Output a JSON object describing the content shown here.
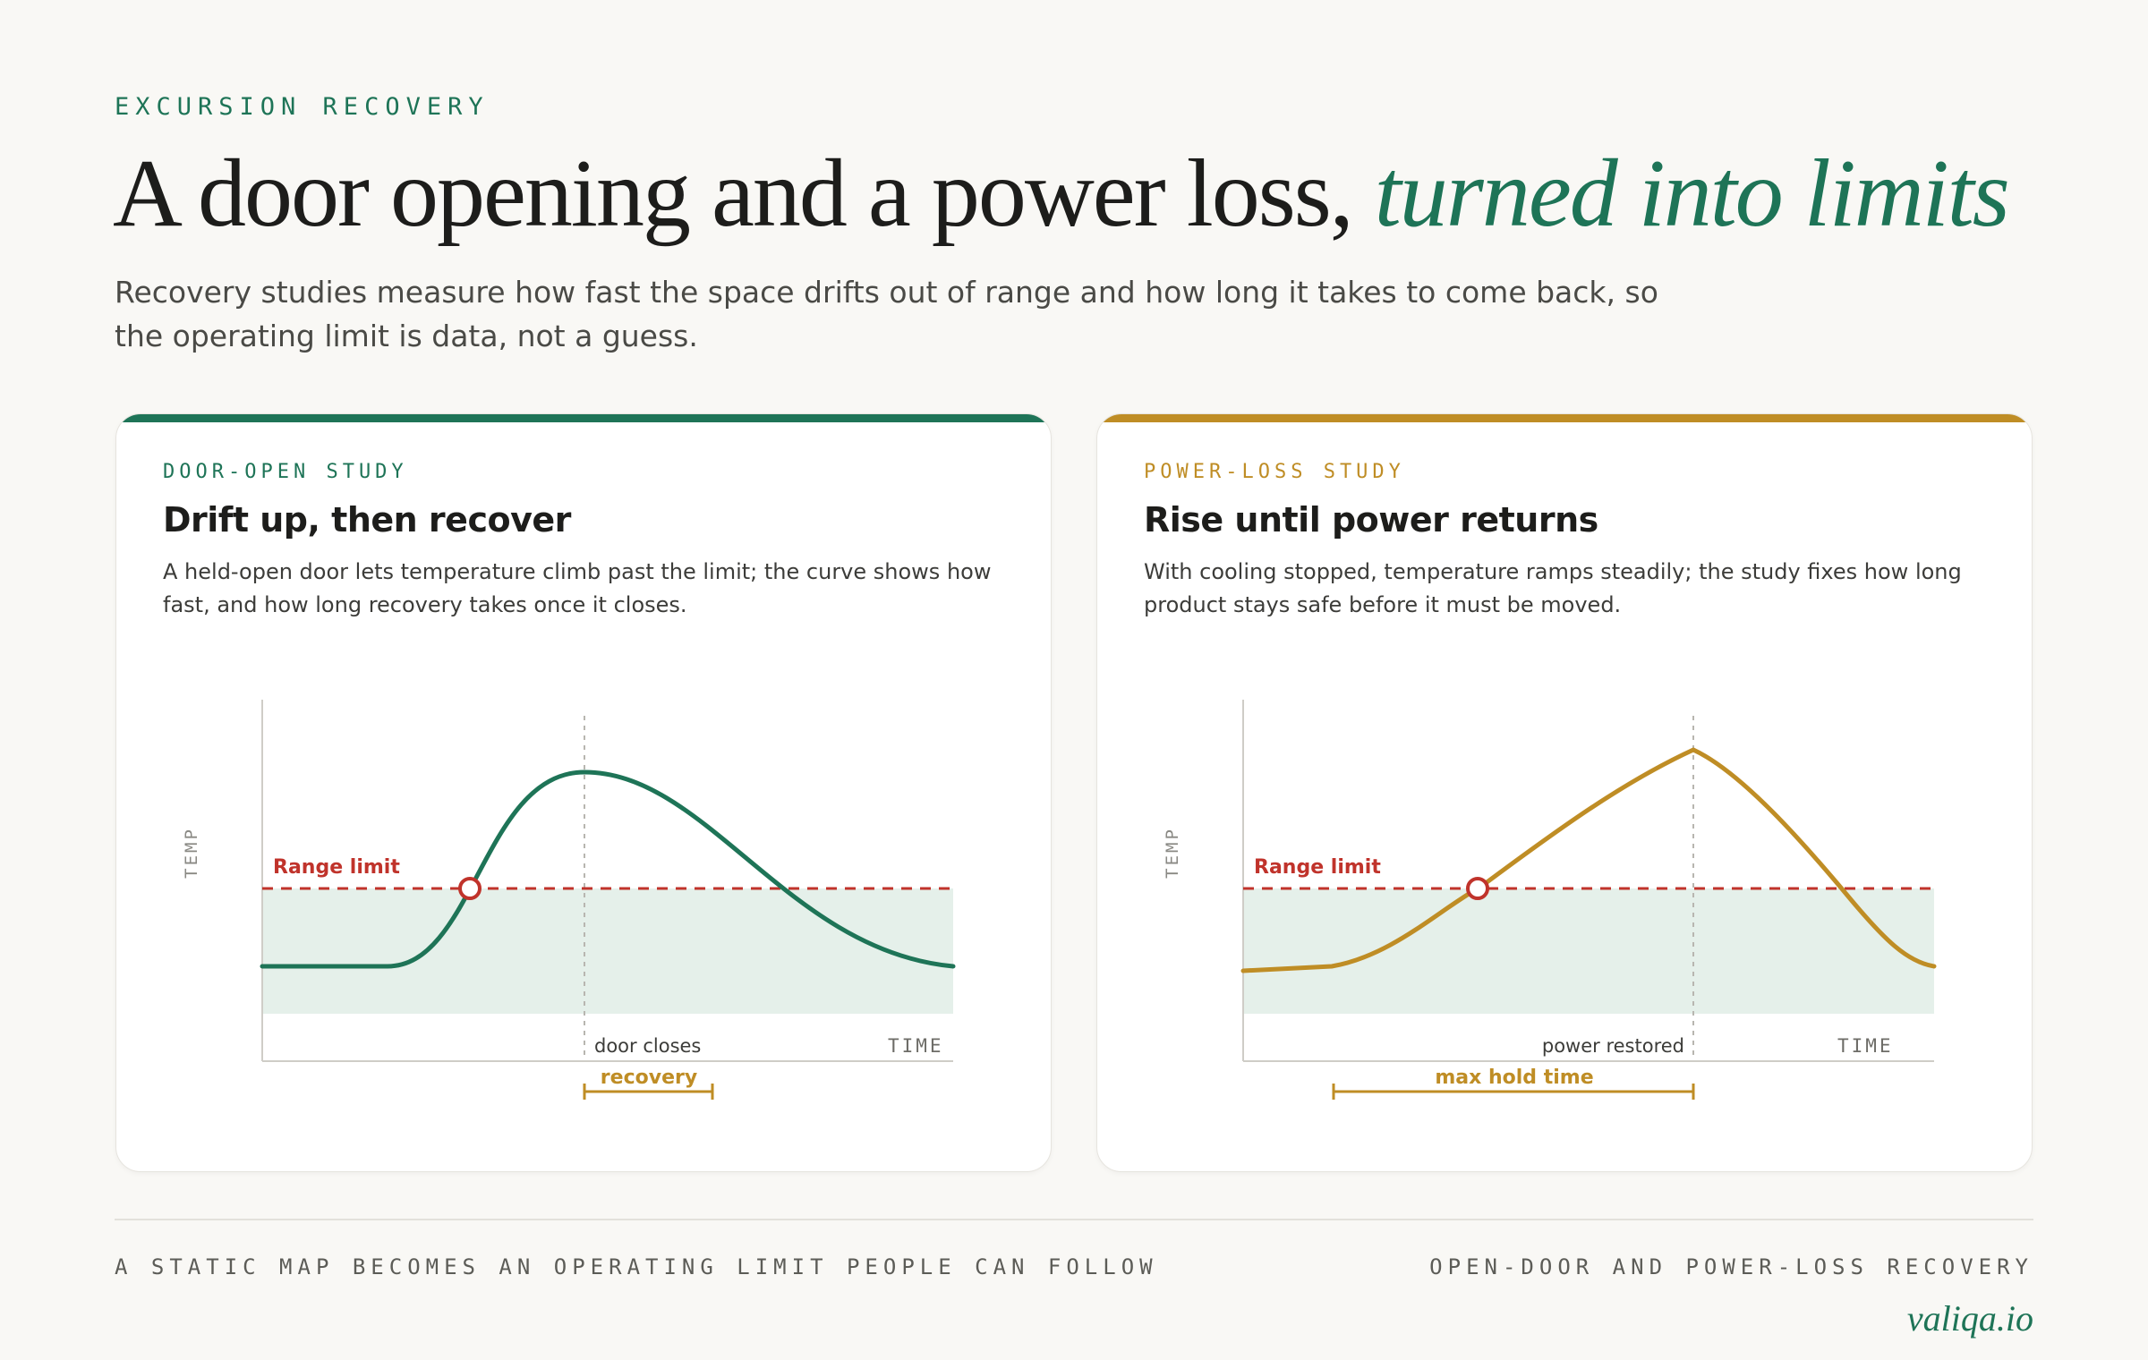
{
  "header": {
    "eyebrow": "EXCURSION RECOVERY",
    "title_plain": "A door opening and a power loss, ",
    "title_emphasis": "turned into limits",
    "lede": "Recovery studies measure how fast the space drifts out of range and how long it takes to come back, so the operating limit is data, not a guess."
  },
  "cards": [
    {
      "tag": "DOOR-OPEN STUDY",
      "title": "Drift up, then recover",
      "description": "A held-open door lets temperature climb past the limit; the curve shows how fast, and how long recovery takes once it closes.",
      "accent": "#1e7457",
      "chart": {
        "y_axis_label": "TEMP",
        "x_axis_label": "TIME",
        "limit_label": "Range limit",
        "event_label": "door closes",
        "span_label": "recovery"
      }
    },
    {
      "tag": "POWER-LOSS STUDY",
      "title": "Rise until power returns",
      "description": "With cooling stopped, temperature ramps steadily; the study fixes how long product stays safe before it must be moved.",
      "accent": "#bf8d25",
      "chart": {
        "y_axis_label": "TEMP",
        "x_axis_label": "TIME",
        "limit_label": "Range limit",
        "event_label": "power restored",
        "span_label": "max hold time"
      }
    }
  ],
  "colors": {
    "green": "#1e7457",
    "gold": "#bf8d25",
    "limit_red": "#c0332b",
    "safe_band": "#e5f0ea"
  },
  "footer": {
    "left": "A STATIC MAP BECOMES AN OPERATING LIMIT PEOPLE CAN FOLLOW",
    "right": "OPEN-DOOR AND POWER-LOSS RECOVERY",
    "brand": "valiqa.io"
  }
}
